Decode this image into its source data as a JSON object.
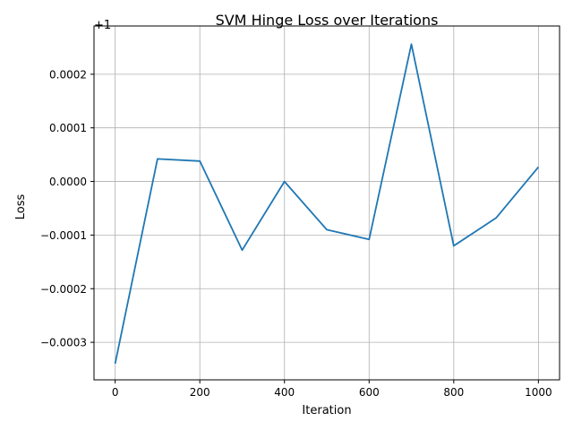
{
  "chart_data": {
    "type": "line",
    "title": "SVM Hinge Loss over Iterations",
    "xlabel": "Iteration",
    "ylabel": "Loss",
    "offset_label": "+1",
    "xlim": [
      -50,
      1050
    ],
    "ylim": [
      -0.00037,
      0.00029
    ],
    "xticks": [
      0,
      200,
      400,
      600,
      800,
      1000
    ],
    "xtick_labels": [
      "0",
      "200",
      "400",
      "600",
      "800",
      "1000"
    ],
    "yticks": [
      -0.0003,
      -0.0002,
      -0.0001,
      0.0,
      0.0001,
      0.0002
    ],
    "ytick_labels": [
      "−0.0003",
      "−0.0002",
      "−0.0001",
      "0.0000",
      "0.0001",
      "0.0002"
    ],
    "grid": true,
    "series": [
      {
        "color": "#1f77b4",
        "x": [
          0,
          100,
          200,
          300,
          400,
          500,
          600,
          700,
          800,
          900,
          1000
        ],
        "y": [
          -0.00034,
          4.2e-05,
          3.8e-05,
          -0.000128,
          0.0,
          -9e-05,
          -0.000108,
          0.000256,
          -0.00012,
          -6.8e-05,
          2.7e-05
        ]
      }
    ]
  }
}
